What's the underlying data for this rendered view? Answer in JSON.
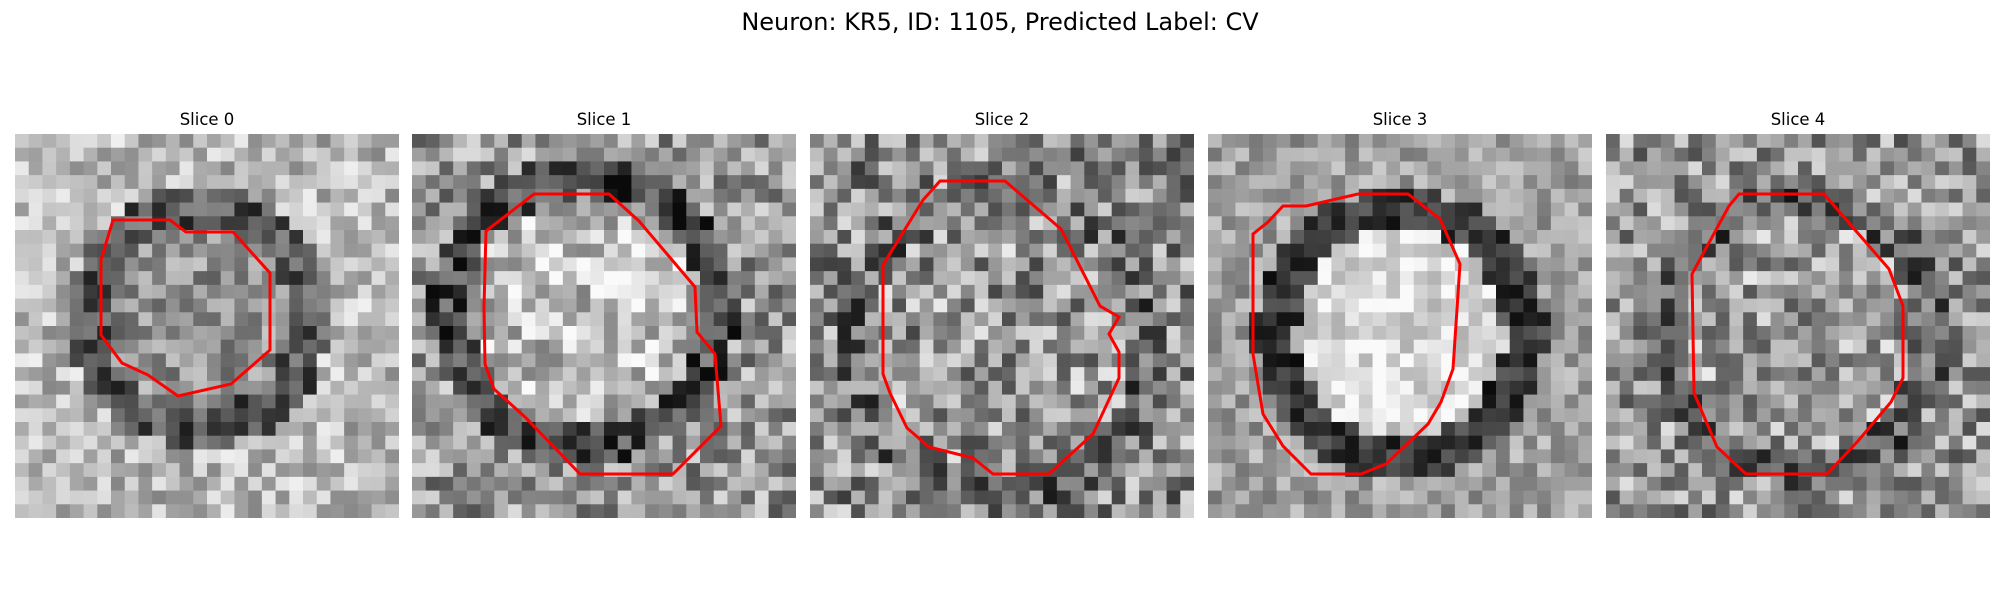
{
  "figure": {
    "title": "Neuron: KR5, ID: 1105, Predicted Label: CV"
  },
  "slices": [
    {
      "label": "Slice 0",
      "contour_color": "#ff0000"
    },
    {
      "label": "Slice 1",
      "contour_color": "#ff0000"
    },
    {
      "label": "Slice 2",
      "contour_color": "#ff0000"
    },
    {
      "label": "Slice 3",
      "contour_color": "#ff0000"
    },
    {
      "label": "Slice 4",
      "contour_color": "#ff0000"
    }
  ]
}
